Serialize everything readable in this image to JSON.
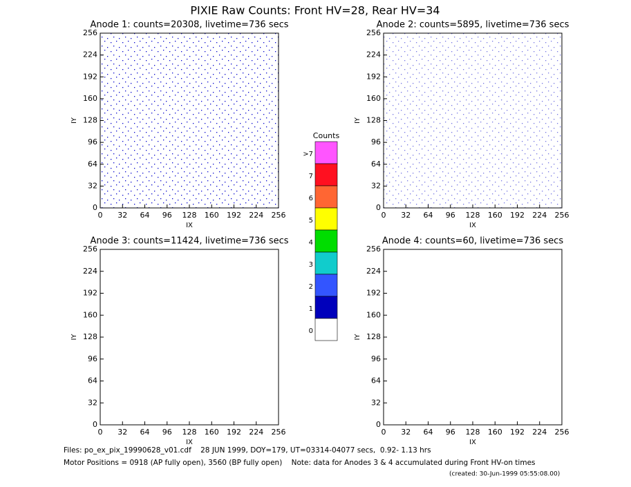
{
  "title": "PIXIE Raw Counts:  Front HV=28, Rear HV=34",
  "chart_data": [
    {
      "type": "heatmap",
      "title": "Anode 1: counts=20308, livetime=736 secs",
      "xlabel": "IX",
      "ylabel": "IY",
      "xlim": [
        0,
        256
      ],
      "ylim": [
        0,
        256
      ],
      "xticks": [
        0,
        32,
        64,
        96,
        128,
        160,
        192,
        224,
        256
      ],
      "yticks": [
        0,
        32,
        64,
        96,
        128,
        160,
        192,
        224,
        256
      ]
    },
    {
      "type": "heatmap",
      "title": "Anode 2: counts=5895, livetime=736 secs",
      "xlabel": "IX",
      "ylabel": "IY",
      "xlim": [
        0,
        256
      ],
      "ylim": [
        0,
        256
      ],
      "xticks": [
        0,
        32,
        64,
        96,
        128,
        160,
        192,
        224,
        256
      ],
      "yticks": [
        0,
        32,
        64,
        96,
        128,
        160,
        192,
        224,
        256
      ]
    },
    {
      "type": "heatmap",
      "title": "Anode 3: counts=11424, livetime=736 secs",
      "xlabel": "IX",
      "ylabel": "IY",
      "xlim": [
        0,
        256
      ],
      "ylim": [
        0,
        256
      ],
      "xticks": [
        0,
        32,
        64,
        96,
        128,
        160,
        192,
        224,
        256
      ],
      "yticks": [
        0,
        32,
        64,
        96,
        128,
        160,
        192,
        224,
        256
      ]
    },
    {
      "type": "heatmap",
      "title": "Anode 4: counts=60, livetime=736 secs",
      "xlabel": "IX",
      "ylabel": "IY",
      "xlim": [
        0,
        256
      ],
      "ylim": [
        0,
        256
      ],
      "xticks": [
        0,
        32,
        64,
        96,
        128,
        160,
        192,
        224,
        256
      ],
      "yticks": [
        0,
        32,
        64,
        96,
        128,
        160,
        192,
        224,
        256
      ]
    }
  ],
  "colorbar": {
    "title": "Counts",
    "labels": [
      ">7",
      "7",
      "6",
      "5",
      "4",
      "3",
      "2",
      "1",
      "0"
    ],
    "colors": [
      "#ff55ff",
      "#ff1020",
      "#ff6633",
      "#ffff00",
      "#00dd00",
      "#11cccc",
      "#3355ff",
      "#0000bb",
      "#ffffff"
    ]
  },
  "footer": [
    "Files: po_ex_pix_19990628_v01.cdf    28 JUN 1999, DOY=179, UT=03314-04077 secs,  0.92- 1.13 hrs",
    "Motor Positions = 0918 (AP fully open), 3560 (BP fully open)    Note: data for Anodes 3 & 4 accumulated during Front HV-on times",
    "(created: 30-Jun-1999 05:55:08.00)"
  ]
}
